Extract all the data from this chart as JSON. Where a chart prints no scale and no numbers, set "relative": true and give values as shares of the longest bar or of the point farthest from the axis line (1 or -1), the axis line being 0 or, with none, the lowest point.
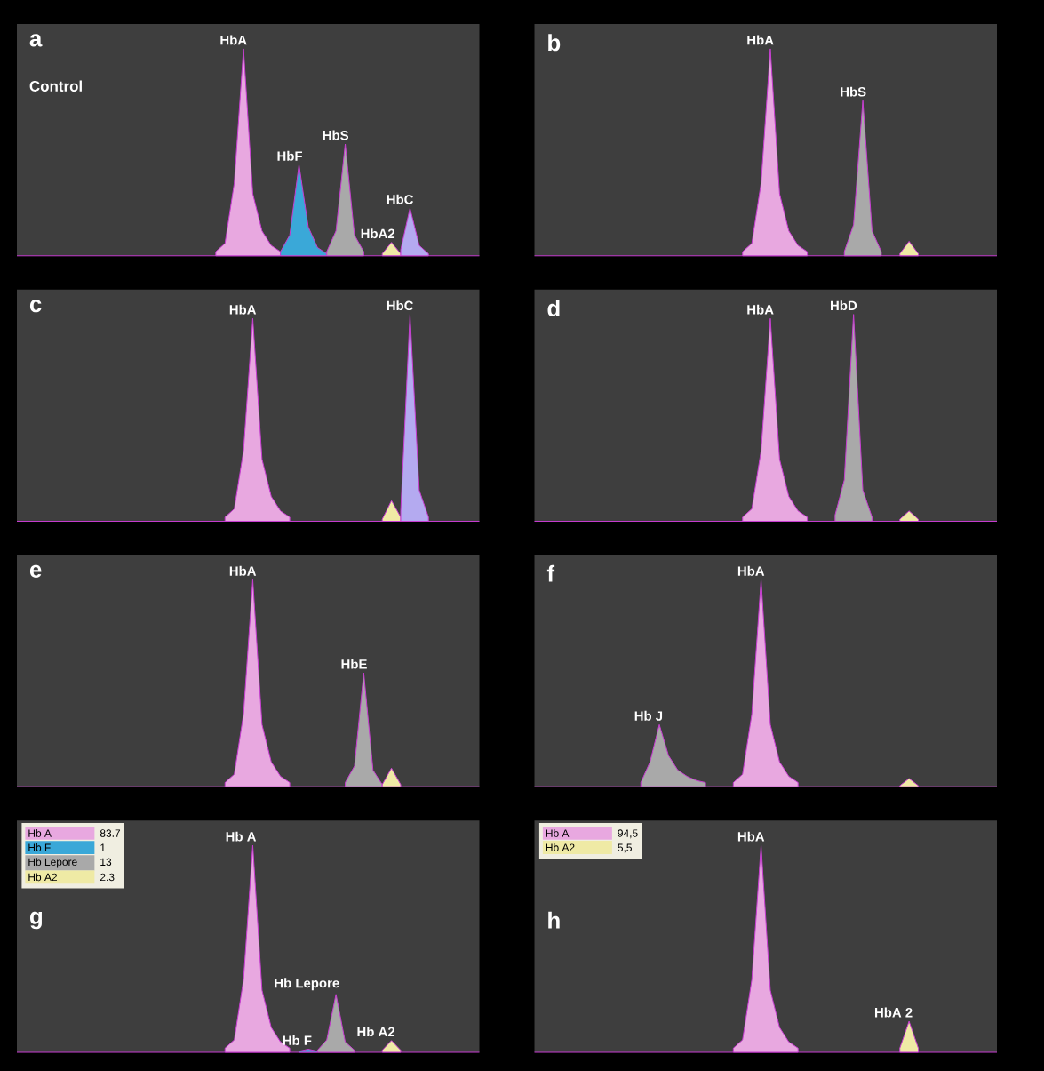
{
  "chart_data": [
    {
      "type": "area",
      "title": "a",
      "subtitle": "Control",
      "relative": true,
      "categories": [
        null,
        null,
        null,
        null,
        null,
        null,
        null,
        null,
        null,
        null,
        null,
        null,
        null,
        null,
        null,
        null,
        null,
        null,
        null,
        null,
        null,
        null,
        null,
        null,
        null,
        null,
        null,
        null,
        null,
        null,
        null,
        null,
        null,
        null,
        null,
        null,
        null,
        null,
        null,
        null,
        null,
        null,
        null,
        null,
        null,
        null,
        null,
        null,
        null,
        null
      ],
      "series": [
        {
          "name": "HbA",
          "color": "#e8a8e0",
          "values": [
            null,
            null,
            null,
            null,
            null,
            null,
            null,
            null,
            null,
            null,
            null,
            null,
            null,
            null,
            null,
            null,
            null,
            null,
            null,
            null,
            null,
            0.02,
            0.06,
            0.35,
            1.0,
            0.3,
            0.12,
            0.05,
            0.02,
            null,
            null,
            null,
            null,
            null,
            null,
            null,
            null,
            null,
            null,
            null,
            null,
            null,
            null,
            null,
            null,
            null,
            null,
            null,
            null,
            null
          ]
        },
        {
          "name": "HbF",
          "color": "#3aa8d8",
          "values": [
            null,
            null,
            null,
            null,
            null,
            null,
            null,
            null,
            null,
            null,
            null,
            null,
            null,
            null,
            null,
            null,
            null,
            null,
            null,
            null,
            null,
            null,
            null,
            null,
            null,
            null,
            null,
            null,
            0.02,
            0.1,
            0.44,
            0.14,
            0.04,
            0.01,
            null,
            null,
            null,
            null,
            null,
            null,
            null,
            null,
            null,
            null,
            null,
            null,
            null,
            null,
            null,
            null
          ]
        },
        {
          "name": "HbS",
          "color": "#a9a9a9",
          "values": [
            null,
            null,
            null,
            null,
            null,
            null,
            null,
            null,
            null,
            null,
            null,
            null,
            null,
            null,
            null,
            null,
            null,
            null,
            null,
            null,
            null,
            null,
            null,
            null,
            null,
            null,
            null,
            null,
            null,
            null,
            null,
            null,
            null,
            0.02,
            0.12,
            0.54,
            0.1,
            0.02,
            null,
            null,
            null,
            null,
            null,
            null,
            null,
            null,
            null,
            null,
            null,
            null
          ]
        },
        {
          "name": "HbA2",
          "color": "#efeaa5",
          "values": [
            null,
            null,
            null,
            null,
            null,
            null,
            null,
            null,
            null,
            null,
            null,
            null,
            null,
            null,
            null,
            null,
            null,
            null,
            null,
            null,
            null,
            null,
            null,
            null,
            null,
            null,
            null,
            null,
            null,
            null,
            null,
            null,
            null,
            null,
            null,
            null,
            null,
            null,
            null,
            0.01,
            0.065,
            0.01,
            null,
            null,
            null,
            null,
            null,
            null,
            null,
            null
          ]
        },
        {
          "name": "HbC",
          "color": "#b4aaf0",
          "values": [
            null,
            null,
            null,
            null,
            null,
            null,
            null,
            null,
            null,
            null,
            null,
            null,
            null,
            null,
            null,
            null,
            null,
            null,
            null,
            null,
            null,
            null,
            null,
            null,
            null,
            null,
            null,
            null,
            null,
            null,
            null,
            null,
            null,
            null,
            null,
            null,
            null,
            null,
            null,
            null,
            null,
            0.03,
            0.23,
            0.05,
            0.01,
            null,
            null,
            null,
            null,
            null
          ]
        }
      ]
    },
    {
      "type": "area",
      "title": "b",
      "relative": true,
      "categories": [
        null,
        null,
        null,
        null,
        null,
        null,
        null,
        null,
        null,
        null,
        null,
        null,
        null,
        null,
        null,
        null,
        null,
        null,
        null,
        null,
        null,
        null,
        null,
        null,
        null,
        null,
        null,
        null,
        null,
        null,
        null,
        null,
        null,
        null,
        null,
        null,
        null,
        null,
        null,
        null,
        null,
        null,
        null,
        null,
        null,
        null,
        null,
        null,
        null,
        null
      ],
      "series": [
        {
          "name": "HbA",
          "color": "#e8a8e0",
          "values": [
            null,
            null,
            null,
            null,
            null,
            null,
            null,
            null,
            null,
            null,
            null,
            null,
            null,
            null,
            null,
            null,
            null,
            null,
            null,
            null,
            null,
            null,
            0.02,
            0.06,
            0.35,
            1.0,
            0.3,
            0.12,
            0.05,
            0.02,
            null,
            null,
            null,
            null,
            null,
            null,
            null,
            null,
            null,
            null,
            null,
            null,
            null,
            null,
            null,
            null,
            null,
            null,
            null,
            null
          ]
        },
        {
          "name": "HbS",
          "color": "#a9a9a9",
          "values": [
            null,
            null,
            null,
            null,
            null,
            null,
            null,
            null,
            null,
            null,
            null,
            null,
            null,
            null,
            null,
            null,
            null,
            null,
            null,
            null,
            null,
            null,
            null,
            null,
            null,
            null,
            null,
            null,
            null,
            null,
            null,
            null,
            null,
            0.02,
            0.15,
            0.75,
            0.12,
            0.02,
            null,
            null,
            null,
            null,
            null,
            null,
            null,
            null,
            null,
            null,
            null,
            null
          ]
        },
        {
          "color": "#efeaa5",
          "values": [
            null,
            null,
            null,
            null,
            null,
            null,
            null,
            null,
            null,
            null,
            null,
            null,
            null,
            null,
            null,
            null,
            null,
            null,
            null,
            null,
            null,
            null,
            null,
            null,
            null,
            null,
            null,
            null,
            null,
            null,
            null,
            null,
            null,
            null,
            null,
            null,
            null,
            null,
            null,
            0.01,
            0.07,
            0.01,
            null,
            null,
            null,
            null,
            null,
            null,
            null,
            null
          ]
        }
      ]
    },
    {
      "type": "area",
      "title": "c",
      "relative": true,
      "categories": [
        null,
        null,
        null,
        null,
        null,
        null,
        null,
        null,
        null,
        null,
        null,
        null,
        null,
        null,
        null,
        null,
        null,
        null,
        null,
        null,
        null,
        null,
        null,
        null,
        null,
        null,
        null,
        null,
        null,
        null,
        null,
        null,
        null,
        null,
        null,
        null,
        null,
        null,
        null,
        null,
        null,
        null,
        null,
        null,
        null,
        null,
        null,
        null,
        null,
        null
      ],
      "series": [
        {
          "name": "HbA",
          "color": "#e8a8e0",
          "values": [
            null,
            null,
            null,
            null,
            null,
            null,
            null,
            null,
            null,
            null,
            null,
            null,
            null,
            null,
            null,
            null,
            null,
            null,
            null,
            null,
            null,
            null,
            0.02,
            0.06,
            0.34,
            0.98,
            0.3,
            0.12,
            0.05,
            0.02,
            null,
            null,
            null,
            null,
            null,
            null,
            null,
            null,
            null,
            null,
            null,
            null,
            null,
            null,
            null,
            null,
            null,
            null,
            null,
            null
          ]
        },
        {
          "color": "#efeaa5",
          "values": [
            null,
            null,
            null,
            null,
            null,
            null,
            null,
            null,
            null,
            null,
            null,
            null,
            null,
            null,
            null,
            null,
            null,
            null,
            null,
            null,
            null,
            null,
            null,
            null,
            null,
            null,
            null,
            null,
            null,
            null,
            null,
            null,
            null,
            null,
            null,
            null,
            null,
            null,
            null,
            0.01,
            0.1,
            0.02,
            null,
            null,
            null,
            null,
            null,
            null,
            null,
            null
          ]
        },
        {
          "name": "HbC",
          "color": "#b4aaf0",
          "values": [
            null,
            null,
            null,
            null,
            null,
            null,
            null,
            null,
            null,
            null,
            null,
            null,
            null,
            null,
            null,
            null,
            null,
            null,
            null,
            null,
            null,
            null,
            null,
            null,
            null,
            null,
            null,
            null,
            null,
            null,
            null,
            null,
            null,
            null,
            null,
            null,
            null,
            null,
            null,
            null,
            null,
            0.05,
            1.0,
            0.15,
            0.02,
            null,
            null,
            null,
            null,
            null
          ]
        }
      ]
    },
    {
      "type": "area",
      "title": "d",
      "relative": true,
      "categories": [
        null,
        null,
        null,
        null,
        null,
        null,
        null,
        null,
        null,
        null,
        null,
        null,
        null,
        null,
        null,
        null,
        null,
        null,
        null,
        null,
        null,
        null,
        null,
        null,
        null,
        null,
        null,
        null,
        null,
        null,
        null,
        null,
        null,
        null,
        null,
        null,
        null,
        null,
        null,
        null,
        null,
        null,
        null,
        null,
        null,
        null,
        null,
        null,
        null,
        null
      ],
      "series": [
        {
          "name": "HbA",
          "color": "#e8a8e0",
          "values": [
            null,
            null,
            null,
            null,
            null,
            null,
            null,
            null,
            null,
            null,
            null,
            null,
            null,
            null,
            null,
            null,
            null,
            null,
            null,
            null,
            null,
            null,
            0.02,
            0.06,
            0.34,
            0.98,
            0.3,
            0.12,
            0.05,
            0.02,
            null,
            null,
            null,
            null,
            null,
            null,
            null,
            null,
            null,
            null,
            null,
            null,
            null,
            null,
            null,
            null,
            null,
            null,
            null,
            null
          ]
        },
        {
          "name": "HbD",
          "color": "#a9a9a9",
          "values": [
            null,
            null,
            null,
            null,
            null,
            null,
            null,
            null,
            null,
            null,
            null,
            null,
            null,
            null,
            null,
            null,
            null,
            null,
            null,
            null,
            null,
            null,
            null,
            null,
            null,
            null,
            null,
            null,
            null,
            null,
            null,
            null,
            0.03,
            0.2,
            1.0,
            0.15,
            0.02,
            null,
            null,
            null,
            null,
            null,
            null,
            null,
            null,
            null,
            null,
            null,
            null,
            null
          ]
        },
        {
          "color": "#efeaa5",
          "values": [
            null,
            null,
            null,
            null,
            null,
            null,
            null,
            null,
            null,
            null,
            null,
            null,
            null,
            null,
            null,
            null,
            null,
            null,
            null,
            null,
            null,
            null,
            null,
            null,
            null,
            null,
            null,
            null,
            null,
            null,
            null,
            null,
            null,
            null,
            null,
            null,
            null,
            null,
            null,
            0.01,
            0.05,
            0.01,
            null,
            null,
            null,
            null,
            null,
            null,
            null,
            null
          ]
        }
      ]
    },
    {
      "type": "area",
      "title": "e",
      "relative": true,
      "categories": [
        null,
        null,
        null,
        null,
        null,
        null,
        null,
        null,
        null,
        null,
        null,
        null,
        null,
        null,
        null,
        null,
        null,
        null,
        null,
        null,
        null,
        null,
        null,
        null,
        null,
        null,
        null,
        null,
        null,
        null,
        null,
        null,
        null,
        null,
        null,
        null,
        null,
        null,
        null,
        null,
        null,
        null,
        null,
        null,
        null,
        null,
        null,
        null,
        null,
        null
      ],
      "series": [
        {
          "name": "HbA",
          "color": "#e8a8e0",
          "values": [
            null,
            null,
            null,
            null,
            null,
            null,
            null,
            null,
            null,
            null,
            null,
            null,
            null,
            null,
            null,
            null,
            null,
            null,
            null,
            null,
            null,
            null,
            0.02,
            0.06,
            0.35,
            1.0,
            0.3,
            0.12,
            0.05,
            0.02,
            null,
            null,
            null,
            null,
            null,
            null,
            null,
            null,
            null,
            null,
            null,
            null,
            null,
            null,
            null,
            null,
            null,
            null,
            null,
            null
          ]
        },
        {
          "name": "HbE",
          "color": "#a9a9a9",
          "values": [
            null,
            null,
            null,
            null,
            null,
            null,
            null,
            null,
            null,
            null,
            null,
            null,
            null,
            null,
            null,
            null,
            null,
            null,
            null,
            null,
            null,
            null,
            null,
            null,
            null,
            null,
            null,
            null,
            null,
            null,
            null,
            null,
            null,
            null,
            null,
            0.02,
            0.1,
            0.55,
            0.08,
            0.01,
            null,
            null,
            null,
            null,
            null,
            null,
            null,
            null,
            null,
            null
          ]
        },
        {
          "color": "#efeaa5",
          "values": [
            null,
            null,
            null,
            null,
            null,
            null,
            null,
            null,
            null,
            null,
            null,
            null,
            null,
            null,
            null,
            null,
            null,
            null,
            null,
            null,
            null,
            null,
            null,
            null,
            null,
            null,
            null,
            null,
            null,
            null,
            null,
            null,
            null,
            null,
            null,
            null,
            null,
            null,
            null,
            0.01,
            0.09,
            0.01,
            null,
            null,
            null,
            null,
            null,
            null,
            null,
            null
          ]
        }
      ]
    },
    {
      "type": "area",
      "title": "f",
      "relative": true,
      "categories": [
        null,
        null,
        null,
        null,
        null,
        null,
        null,
        null,
        null,
        null,
        null,
        null,
        null,
        null,
        null,
        null,
        null,
        null,
        null,
        null,
        null,
        null,
        null,
        null,
        null,
        null,
        null,
        null,
        null,
        null,
        null,
        null,
        null,
        null,
        null,
        null,
        null,
        null,
        null,
        null,
        null,
        null,
        null,
        null,
        null,
        null,
        null,
        null,
        null,
        null
      ],
      "series": [
        {
          "name": "Hb J",
          "color": "#a9a9a9",
          "values": [
            null,
            null,
            null,
            null,
            null,
            null,
            null,
            null,
            null,
            null,
            null,
            0.02,
            0.12,
            0.3,
            0.15,
            0.08,
            0.05,
            0.03,
            0.02,
            null,
            null,
            null,
            null,
            null,
            null,
            null,
            null,
            null,
            null,
            null,
            null,
            null,
            null,
            null,
            null,
            null,
            null,
            null,
            null,
            null,
            null,
            null,
            null,
            null,
            null,
            null,
            null,
            null,
            null,
            null
          ]
        },
        {
          "name": "HbA",
          "color": "#e8a8e0",
          "values": [
            null,
            null,
            null,
            null,
            null,
            null,
            null,
            null,
            null,
            null,
            null,
            null,
            null,
            null,
            null,
            null,
            null,
            null,
            null,
            null,
            null,
            0.02,
            0.06,
            0.35,
            1.0,
            0.3,
            0.12,
            0.05,
            0.02,
            null,
            null,
            null,
            null,
            null,
            null,
            null,
            null,
            null,
            null,
            null,
            null,
            null,
            null,
            null,
            null,
            null,
            null,
            null,
            null,
            null
          ]
        },
        {
          "color": "#efeaa5",
          "values": [
            null,
            null,
            null,
            null,
            null,
            null,
            null,
            null,
            null,
            null,
            null,
            null,
            null,
            null,
            null,
            null,
            null,
            null,
            null,
            null,
            null,
            null,
            null,
            null,
            null,
            null,
            null,
            null,
            null,
            null,
            null,
            null,
            null,
            null,
            null,
            null,
            null,
            null,
            null,
            0.005,
            0.04,
            0.005,
            null,
            null,
            null,
            null,
            null,
            null,
            null,
            null
          ]
        }
      ]
    },
    {
      "type": "area",
      "title": "g",
      "relative": true,
      "legend": "top left",
      "annotations": [
        "83.7",
        "1",
        "13",
        "2.3",
        "Hb A",
        "Hb F",
        "Hb Lepore",
        "Hb A2"
      ],
      "categories": [
        null,
        null,
        null,
        null,
        null,
        null,
        null,
        null,
        null,
        null,
        null,
        null,
        null,
        null,
        null,
        null,
        null,
        null,
        null,
        null,
        null,
        null,
        null,
        null,
        null,
        null,
        null,
        null,
        null,
        null,
        null,
        null,
        null,
        null,
        null,
        null,
        null,
        null,
        null,
        null,
        null,
        null,
        null,
        null,
        null,
        null,
        null,
        null,
        null,
        null
      ],
      "series": [
        {
          "name": "Hb A",
          "color": "#e8a8e0",
          "values": [
            null,
            null,
            null,
            null,
            null,
            null,
            null,
            null,
            null,
            null,
            null,
            null,
            null,
            null,
            null,
            null,
            null,
            null,
            null,
            null,
            null,
            null,
            0.02,
            0.06,
            0.35,
            1.0,
            0.3,
            0.12,
            0.05,
            0.02,
            null,
            null,
            null,
            null,
            null,
            null,
            null,
            null,
            null,
            null,
            null,
            null,
            null,
            null,
            null,
            null,
            null,
            null,
            null,
            null
          ]
        },
        {
          "name": "Hb F",
          "color": "#3aa8d8",
          "values": [
            null,
            null,
            null,
            null,
            null,
            null,
            null,
            null,
            null,
            null,
            null,
            null,
            null,
            null,
            null,
            null,
            null,
            null,
            null,
            null,
            null,
            null,
            null,
            null,
            null,
            null,
            null,
            null,
            null,
            null,
            0.005,
            0.015,
            0.005,
            null,
            null,
            null,
            null,
            null,
            null,
            null,
            null,
            null,
            null,
            null,
            null,
            null,
            null,
            null,
            null,
            null
          ]
        },
        {
          "name": "Hb Lepore",
          "color": "#a9a9a9",
          "values": [
            null,
            null,
            null,
            null,
            null,
            null,
            null,
            null,
            null,
            null,
            null,
            null,
            null,
            null,
            null,
            null,
            null,
            null,
            null,
            null,
            null,
            null,
            null,
            null,
            null,
            null,
            null,
            null,
            null,
            null,
            null,
            null,
            0.01,
            0.06,
            0.28,
            0.05,
            0.01,
            null,
            null,
            null,
            null,
            null,
            null,
            null,
            null,
            null,
            null,
            null,
            null,
            null
          ]
        },
        {
          "name": "Hb A2",
          "color": "#efeaa5",
          "values": [
            null,
            null,
            null,
            null,
            null,
            null,
            null,
            null,
            null,
            null,
            null,
            null,
            null,
            null,
            null,
            null,
            null,
            null,
            null,
            null,
            null,
            null,
            null,
            null,
            null,
            null,
            null,
            null,
            null,
            null,
            null,
            null,
            null,
            null,
            null,
            null,
            null,
            null,
            null,
            0.01,
            0.057,
            0.01,
            null,
            null,
            null,
            null,
            null,
            null,
            null,
            null
          ]
        }
      ]
    },
    {
      "type": "area",
      "title": "h",
      "relative": true,
      "legend": "top left",
      "annotations": [
        "94,5",
        "5,5",
        "HbA",
        "HbA 2"
      ],
      "categories": [
        null,
        null,
        null,
        null,
        null,
        null,
        null,
        null,
        null,
        null,
        null,
        null,
        null,
        null,
        null,
        null,
        null,
        null,
        null,
        null,
        null,
        null,
        null,
        null,
        null,
        null,
        null,
        null,
        null,
        null,
        null,
        null,
        null,
        null,
        null,
        null,
        null,
        null,
        null,
        null,
        null,
        null,
        null,
        null,
        null,
        null,
        null,
        null,
        null,
        null
      ],
      "series": [
        {
          "name": "Hb A",
          "color": "#e8a8e0",
          "values": [
            null,
            null,
            null,
            null,
            null,
            null,
            null,
            null,
            null,
            null,
            null,
            null,
            null,
            null,
            null,
            null,
            null,
            null,
            null,
            null,
            null,
            0.02,
            0.06,
            0.35,
            1.0,
            0.3,
            0.12,
            0.05,
            0.02,
            null,
            null,
            null,
            null,
            null,
            null,
            null,
            null,
            null,
            null,
            null,
            null,
            null,
            null,
            null,
            null,
            null,
            null,
            null,
            null,
            null
          ]
        },
        {
          "name": "Hb A2",
          "color": "#efeaa5",
          "values": [
            null,
            null,
            null,
            null,
            null,
            null,
            null,
            null,
            null,
            null,
            null,
            null,
            null,
            null,
            null,
            null,
            null,
            null,
            null,
            null,
            null,
            null,
            null,
            null,
            null,
            null,
            null,
            null,
            null,
            null,
            null,
            null,
            null,
            null,
            null,
            null,
            null,
            null,
            null,
            0.02,
            0.15,
            0.02,
            null,
            null,
            null,
            null,
            null,
            null,
            null,
            null
          ]
        }
      ]
    }
  ]
}
